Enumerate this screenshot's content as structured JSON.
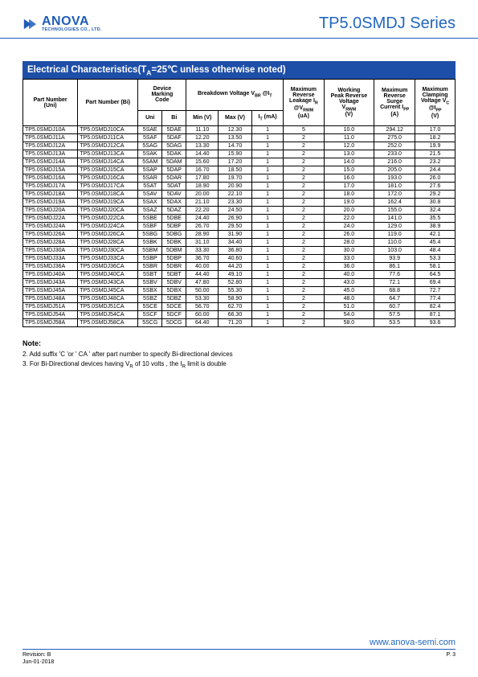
{
  "header": {
    "logo_name": "ANOVA",
    "logo_sub": "TECHNOLOGIES CO., LTD.",
    "series_title": "TP5.0SMDJ Series"
  },
  "section_title": "Electrical Characteristics(T_A=25℃ unless otherwise noted)",
  "columns": {
    "part_uni": "Part Number (Uni)",
    "part_bi": "Part Number (Bi)",
    "device_marking": "Device Marking Code",
    "uni": "Uni",
    "bi": "Bi",
    "breakdown": "Breakdown Voltage V_BR @I_T",
    "min_v": "Min (V)",
    "max_v": "Max (V)",
    "it_ma": "I_T (mA)",
    "leak": "Maximum Reverse Leakage I_R @V_RWM (uA)",
    "vrwm": "Working Peak Reverse Voltage V_RWM (V)",
    "ipp": "Maximum Reverse Surge Current I_PP (A)",
    "vc": "Maximum Clamping Voltage V_C @I_PP (V)"
  },
  "rows": [
    {
      "u": "TP5.0SMDJ10A",
      "b": "TP5.0SMDJ10CA",
      "mu": "5SAE",
      "mb": "5DAE",
      "min": "11.10",
      "max": "12.30",
      "it": "1",
      "ir": "5",
      "vr": "10.0",
      "ipp": "294.12",
      "vc": "17.0"
    },
    {
      "u": "TP5.0SMDJ11A",
      "b": "TP5.0SMDJ11CA",
      "mu": "5SAF",
      "mb": "5DAF",
      "min": "12.20",
      "max": "13.50",
      "it": "1",
      "ir": "2",
      "vr": "11.0",
      "ipp": "275.0",
      "vc": "18.2"
    },
    {
      "u": "TP5.0SMDJ12A",
      "b": "TP5.0SMDJ12CA",
      "mu": "5SAG",
      "mb": "5DAG",
      "min": "13.30",
      "max": "14.70",
      "it": "1",
      "ir": "2",
      "vr": "12.0",
      "ipp": "252.0",
      "vc": "19.9"
    },
    {
      "u": "TP5.0SMDJ13A",
      "b": "TP5.0SMDJ13CA",
      "mu": "5SAK",
      "mb": "5DAK",
      "min": "14.40",
      "max": "15.90",
      "it": "1",
      "ir": "2",
      "vr": "13.0",
      "ipp": "233.0",
      "vc": "21.5"
    },
    {
      "u": "TP5.0SMDJ14A",
      "b": "TP5.0SMDJ14CA",
      "mu": "5SAM",
      "mb": "5DAM",
      "min": "15.60",
      "max": "17.20",
      "it": "1",
      "ir": "2",
      "vr": "14.0",
      "ipp": "216.0",
      "vc": "23.2"
    },
    {
      "u": "TP5.0SMDJ15A",
      "b": "TP5.0SMDJ15CA",
      "mu": "5SAP",
      "mb": "5DAP",
      "min": "16.70",
      "max": "18.50",
      "it": "1",
      "ir": "2",
      "vr": "15.0",
      "ipp": "205.0",
      "vc": "24.4"
    },
    {
      "u": "TP5.0SMDJ16A",
      "b": "TP5.0SMDJ16CA",
      "mu": "5SAR",
      "mb": "5DAR",
      "min": "17.80",
      "max": "19.70",
      "it": "1",
      "ir": "2",
      "vr": "16.0",
      "ipp": "193.0",
      "vc": "26.0"
    },
    {
      "u": "TP5.0SMDJ17A",
      "b": "TP5.0SMDJ17CA",
      "mu": "5SAT",
      "mb": "5DAT",
      "min": "18.90",
      "max": "20.90",
      "it": "1",
      "ir": "2",
      "vr": "17.0",
      "ipp": "181.0",
      "vc": "27.6"
    },
    {
      "u": "TP5.0SMDJ18A",
      "b": "TP5.0SMDJ18CA",
      "mu": "5SAV",
      "mb": "5DAV",
      "min": "20.00",
      "max": "22.10",
      "it": "1",
      "ir": "2",
      "vr": "18.0",
      "ipp": "172.0",
      "vc": "29.2"
    },
    {
      "u": "TP5.0SMDJ19A",
      "b": "TP5.0SMDJ19CA",
      "mu": "5SAX",
      "mb": "5DAX",
      "min": "21.10",
      "max": "23.30",
      "it": "1",
      "ir": "2",
      "vr": "19.0",
      "ipp": "162.4",
      "vc": "30.8"
    },
    {
      "u": "TP5.0SMDJ20A",
      "b": "TP5.0SMDJ20CA",
      "mu": "5SAZ",
      "mb": "5DAZ",
      "min": "22.20",
      "max": "24.50",
      "it": "1",
      "ir": "2",
      "vr": "20.0",
      "ipp": "155.0",
      "vc": "32.4"
    },
    {
      "u": "TP5.0SMDJ22A",
      "b": "TP5.0SMDJ22CA",
      "mu": "5SBE",
      "mb": "5DBE",
      "min": "24.40",
      "max": "26.90",
      "it": "1",
      "ir": "2",
      "vr": "22.0",
      "ipp": "141.0",
      "vc": "35.5"
    },
    {
      "u": "TP5.0SMDJ24A",
      "b": "TP5.0SMDJ24CA",
      "mu": "5SBF",
      "mb": "5DBF",
      "min": "26.70",
      "max": "29.50",
      "it": "1",
      "ir": "2",
      "vr": "24.0",
      "ipp": "129.0",
      "vc": "38.9"
    },
    {
      "u": "TP5.0SMDJ26A",
      "b": "TP5.0SMDJ26CA",
      "mu": "5SBG",
      "mb": "5DBG",
      "min": "28.90",
      "max": "31.90",
      "it": "1",
      "ir": "2",
      "vr": "26.0",
      "ipp": "119.0",
      "vc": "42.1"
    },
    {
      "u": "TP5.0SMDJ28A",
      "b": "TP5.0SMDJ28CA",
      "mu": "5SBK",
      "mb": "5DBK",
      "min": "31.10",
      "max": "34.40",
      "it": "1",
      "ir": "2",
      "vr": "28.0",
      "ipp": "110.0",
      "vc": "45.4"
    },
    {
      "u": "TP5.0SMDJ30A",
      "b": "TP5.0SMDJ30CA",
      "mu": "5SBM",
      "mb": "5DBM",
      "min": "33.30",
      "max": "36.80",
      "it": "1",
      "ir": "2",
      "vr": "30.0",
      "ipp": "103.0",
      "vc": "48.4"
    },
    {
      "u": "TP5.0SMDJ33A",
      "b": "TP5.0SMDJ33CA",
      "mu": "5SBP",
      "mb": "5DBP",
      "min": "36.70",
      "max": "40.60",
      "it": "1",
      "ir": "2",
      "vr": "33.0",
      "ipp": "93.9",
      "vc": "53.3"
    },
    {
      "u": "TP5.0SMDJ36A",
      "b": "TP5.0SMDJ36CA",
      "mu": "5SBR",
      "mb": "5DBR",
      "min": "40.00",
      "max": "44.20",
      "it": "1",
      "ir": "2",
      "vr": "36.0",
      "ipp": "86.1",
      "vc": "58.1"
    },
    {
      "u": "TP5.0SMDJ40A",
      "b": "TP5.0SMDJ40CA",
      "mu": "5SBT",
      "mb": "5DBT",
      "min": "44.40",
      "max": "49.10",
      "it": "1",
      "ir": "2",
      "vr": "40.0",
      "ipp": "77.6",
      "vc": "64.5"
    },
    {
      "u": "TP5.0SMDJ43A",
      "b": "TP5.0SMDJ43CA",
      "mu": "5SBV",
      "mb": "5DBV",
      "min": "47.80",
      "max": "52.80",
      "it": "1",
      "ir": "2",
      "vr": "43.0",
      "ipp": "72.1",
      "vc": "69.4"
    },
    {
      "u": "TP5.0SMDJ45A",
      "b": "TP5.0SMDJ45CA",
      "mu": "5SBX",
      "mb": "5DBX",
      "min": "50.00",
      "max": "55.30",
      "it": "1",
      "ir": "2",
      "vr": "45.0",
      "ipp": "68.8",
      "vc": "72.7"
    },
    {
      "u": "TP5.0SMDJ48A",
      "b": "TP5.0SMDJ48CA",
      "mu": "5SBZ",
      "mb": "5DBZ",
      "min": "53.30",
      "max": "58.90",
      "it": "1",
      "ir": "2",
      "vr": "48.0",
      "ipp": "64.7",
      "vc": "77.4"
    },
    {
      "u": "TP5.0SMDJ51A",
      "b": "TP5.0SMDJ51CA",
      "mu": "5SCE",
      "mb": "5DCE",
      "min": "56.70",
      "max": "62.70",
      "it": "1",
      "ir": "2",
      "vr": "51.0",
      "ipp": "60.7",
      "vc": "82.4"
    },
    {
      "u": "TP5.0SMDJ54A",
      "b": "TP5.0SMDJ54CA",
      "mu": "5SCF",
      "mb": "5DCF",
      "min": "60.00",
      "max": "66.30",
      "it": "1",
      "ir": "2",
      "vr": "54.0",
      "ipp": "57.5",
      "vc": "87.1"
    },
    {
      "u": "TP5.0SMDJ58A",
      "b": "TP5.0SMDJ58CA",
      "mu": "5SCG",
      "mb": "5DCG",
      "min": "64.40",
      "max": "71.20",
      "it": "1",
      "ir": "2",
      "vr": "58.0",
      "ipp": "53.5",
      "vc": "93.6"
    }
  ],
  "notes": {
    "title": "Note:",
    "n2": "2. Add suffix 'C 'or ' CA ' after part number to specify Bi-directional devices",
    "n3": "3. For Bi-Directional devices having V_R of 10 volts , the I_R limit is double"
  },
  "footer": {
    "url": "www.anova-semi.com",
    "rev": "Revision: B",
    "date": "Jun-01-2018",
    "page": "P. 3"
  },
  "style": {
    "brand_color": "#1e5db8",
    "header_bg": "#1e4fa8"
  }
}
